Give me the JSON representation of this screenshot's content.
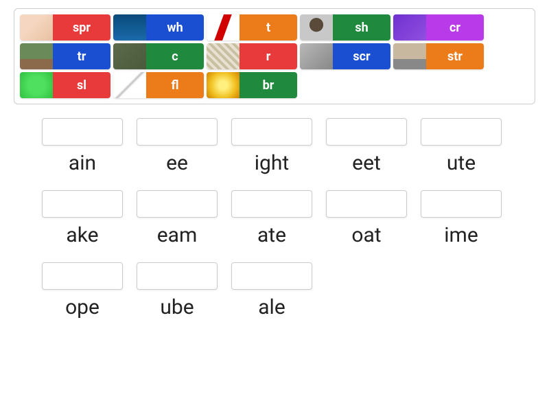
{
  "colors": {
    "red": "#e83a3a",
    "blue": "#1b4fd1",
    "orange": "#ec7b1a",
    "green": "#1f8a3e",
    "purple": "#b93ae8"
  },
  "source_rows": [
    [
      {
        "label": "spr",
        "color": "red",
        "icon": "ic-feet"
      },
      {
        "label": "wh",
        "color": "blue",
        "icon": "ic-whale"
      },
      {
        "label": "t",
        "color": "orange",
        "icon": "ic-tube"
      },
      {
        "label": "sh",
        "color": "green",
        "icon": "ic-shake"
      },
      {
        "label": "cr",
        "color": "purple",
        "icon": "ic-crate"
      }
    ],
    [
      {
        "label": "tr",
        "color": "blue",
        "icon": "ic-tree"
      },
      {
        "label": "c",
        "color": "green",
        "icon": "ic-coat"
      },
      {
        "label": "r",
        "color": "red",
        "icon": "ic-rope"
      },
      {
        "label": "scr",
        "color": "blue",
        "icon": "ic-screen"
      },
      {
        "label": "str",
        "color": "orange",
        "icon": "ic-street"
      }
    ],
    [
      {
        "label": "sl",
        "color": "red",
        "icon": "ic-slime"
      },
      {
        "label": "fl",
        "color": "orange",
        "icon": "ic-flute"
      },
      {
        "label": "br",
        "color": "green",
        "icon": "ic-bright"
      }
    ]
  ],
  "drop_slots": [
    "ain",
    "ee",
    "ight",
    "eet",
    "ute",
    "ake",
    "eam",
    "ate",
    "oat",
    "ime",
    "ope",
    "ube",
    "ale"
  ]
}
